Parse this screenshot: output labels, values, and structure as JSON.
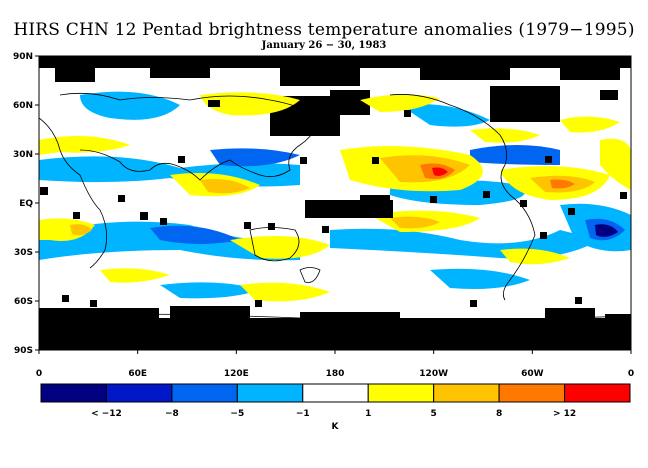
{
  "title": "HIRS CHN 12 Pentad brightness temperature anomalies (1979−1995)",
  "subtitle": "January 26 − 30, 1983",
  "map": {
    "lat_labels": [
      "90N",
      "60N",
      "30N",
      "EQ",
      "30S",
      "60S",
      "90S"
    ],
    "lon_labels": [
      "0",
      "60E",
      "120E",
      "180",
      "120W",
      "60W",
      "0"
    ]
  },
  "colorbar": {
    "colors": [
      "#000080",
      "#0018c8",
      "#0066f2",
      "#00b4ff",
      "#ffffff",
      "#ffff00",
      "#ffc400",
      "#ff7800",
      "#ff0000"
    ],
    "labels": [
      "< −12",
      "−8",
      "−5",
      "−1",
      "1",
      "5",
      "8",
      "> 12"
    ],
    "unit": "K"
  },
  "palette": {
    "missing": "#000000",
    "coast": "#000000"
  }
}
